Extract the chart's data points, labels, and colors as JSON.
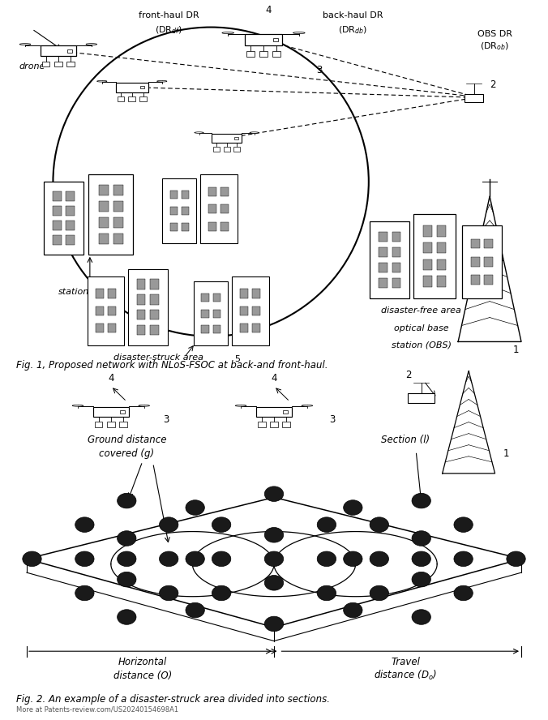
{
  "fig1_caption": "Fig. 1, Proposed network with NLoS-FSOC at back-and front-haul.",
  "fig2_caption": "Fig. 2. An example of a disaster-struck area divided into sections.",
  "watermark": "More at Patents-review.com/US20240154698A1",
  "bg_color": "#ffffff",
  "line_color": "#000000"
}
